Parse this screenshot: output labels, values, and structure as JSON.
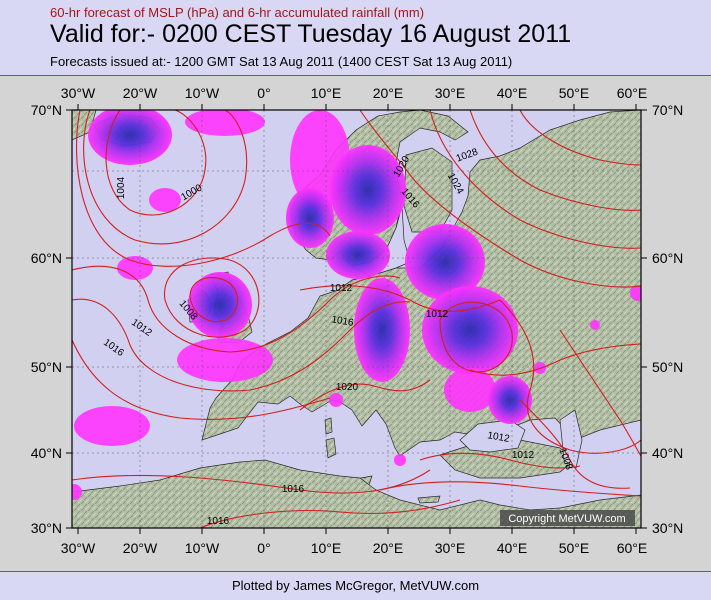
{
  "header": {
    "subtitle": "60-hr forecast of MSLP (hPa) and 6-hr accumulated rainfall (mm)",
    "title": "Valid for:- 0200 CEST Tuesday 16 August 2011",
    "issued": "Forecasts issued at:- 1200 GMT Sat 13 Aug 2011 (1400 CEST Sat 13 Aug 2011)"
  },
  "map": {
    "lon_labels": [
      "30°W",
      "20°W",
      "10°W",
      "0°",
      "10°E",
      "20°E",
      "30°E",
      "40°E",
      "50°E",
      "60°E"
    ],
    "lat_labels": [
      "70°N",
      "60°N",
      "50°N",
      "40°N",
      "30°N"
    ],
    "isobar_labels": [
      "1004",
      "1000",
      "1008",
      "1012",
      "1016",
      "1012",
      "1016",
      "1012",
      "1020",
      "1016",
      "1020",
      "1024",
      "1028",
      "1012",
      "1012",
      "1008",
      "1016",
      "1016"
    ],
    "copyright": "Copyright MetVUW.com",
    "colors": {
      "ocean": "#d2d0f0",
      "isobar": "#d02020",
      "rain_light": "#ff33ff",
      "rain_mid": "#8a30f0",
      "rain_heavy": "#2a2ab0"
    }
  },
  "footer": {
    "credit": "Plotted by James McGregor, MetVUW.com"
  }
}
